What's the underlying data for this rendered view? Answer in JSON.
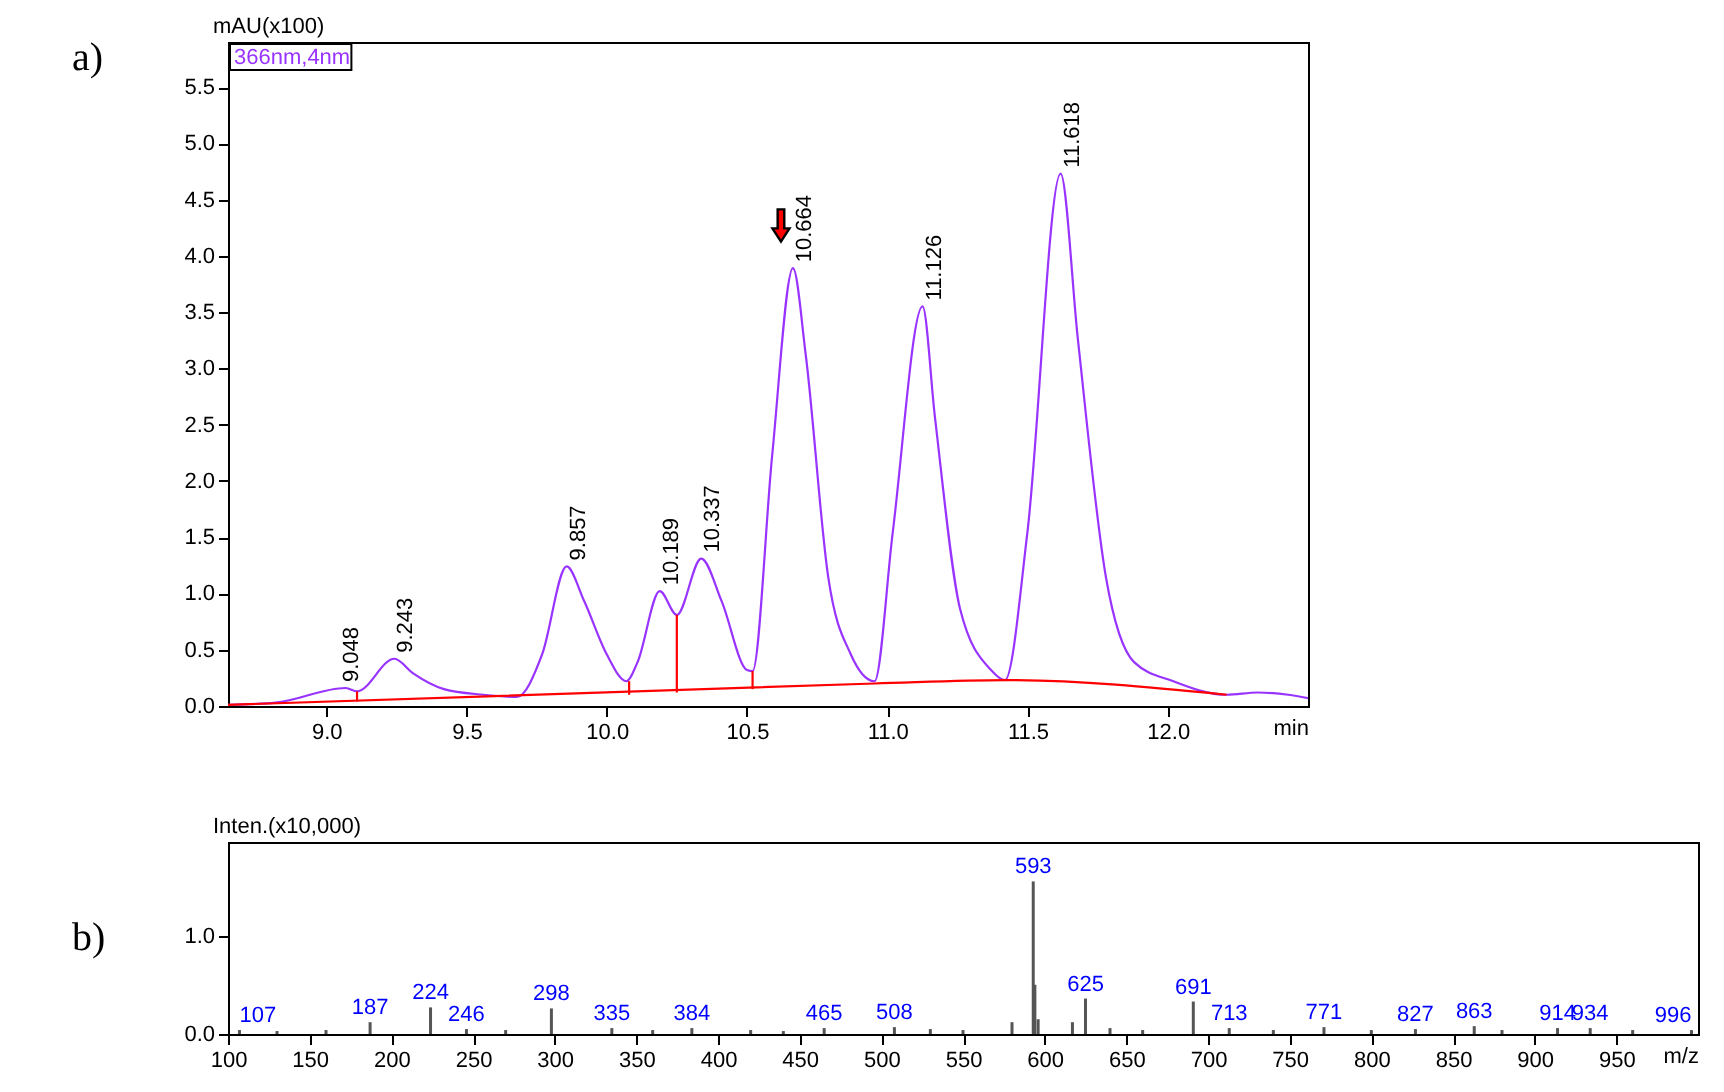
{
  "chart_data": [
    {
      "type": "line",
      "xlabel": "min",
      "ylabel": "mAU(x100)",
      "xlim": [
        8.65,
        12.5
      ],
      "ylim": [
        0,
        5.9
      ],
      "xticks": [
        {
          "value": 9,
          "label": "9.0"
        },
        9.5,
        {
          "value": 10,
          "label": "10.0"
        },
        10.5,
        {
          "value": 11,
          "label": "11.0"
        },
        11.5,
        {
          "value": 12,
          "label": "12.0"
        }
      ],
      "yticks": [
        {
          "value": 0,
          "label": "0.0"
        },
        0.5,
        {
          "value": 1,
          "label": "1.0"
        },
        1.5,
        {
          "value": 2,
          "label": "2.0"
        },
        2.5,
        {
          "value": 3,
          "label": "3.0"
        },
        3.5,
        {
          "value": 4,
          "label": "4.0"
        },
        4.5,
        {
          "value": 5,
          "label": "5.0"
        },
        5.5
      ],
      "series": [
        {
          "color": "#9933ff",
          "x": [
            8.65,
            8.82,
            9.07,
            9.11,
            9.243,
            9.31,
            9.42,
            9.56,
            9.68,
            9.77,
            9.857,
            9.92,
            10.0,
            10.07,
            10.11,
            10.189,
            10.25,
            10.337,
            10.41,
            10.5,
            10.52,
            10.59,
            10.664,
            10.71,
            10.79,
            10.87,
            10.955,
            11.02,
            11.126,
            11.17,
            11.26,
            11.37,
            11.42,
            11.5,
            11.618,
            11.68,
            11.78,
            11.88,
            12.02,
            12.21,
            12.32,
            12.43,
            12.5
          ],
          "values": [
            0.01,
            0.03,
            0.16,
            0.13,
            0.42,
            0.29,
            0.15,
            0.1,
            0.08,
            0.46,
            1.24,
            0.93,
            0.46,
            0.22,
            0.39,
            1.02,
            0.81,
            1.31,
            0.93,
            0.32,
            0.31,
            2.23,
            3.89,
            3.11,
            1.14,
            0.46,
            0.22,
            1.55,
            3.55,
            2.57,
            0.86,
            0.32,
            0.23,
            1.55,
            4.73,
            3.25,
            1.14,
            0.39,
            0.22,
            0.1,
            0.12,
            0.1,
            0.07
          ]
        },
        {
          "color": "#ff0000",
          "x": [
            8.65,
            10.955,
            11.42,
            12.21
          ],
          "values": [
            0.01,
            0.2,
            0.23,
            0.1
          ]
        },
        {
          "color": "#ff0000",
          "x": [
            9.11,
            9.11
          ],
          "values": [
            0.04,
            0.13
          ]
        },
        {
          "color": "#ff0000",
          "x": [
            10.08,
            10.08
          ],
          "values": [
            0.1,
            0.22
          ]
        },
        {
          "color": "#ff0000",
          "x": [
            10.25,
            10.25
          ],
          "values": [
            0.12,
            0.81
          ]
        },
        {
          "color": "#ff0000",
          "x": [
            10.52,
            10.52
          ],
          "values": [
            0.15,
            0.31
          ]
        }
      ],
      "annotations": [
        "a)",
        "366nm,4nm",
        {
          "text": "9.048",
          "x": 9.048,
          "y": 0.16
        },
        {
          "text": "9.243",
          "x": 9.243,
          "y": 0.42
        },
        {
          "text": "9.857",
          "x": 9.857,
          "y": 1.24
        },
        {
          "text": "10.189",
          "x": 10.189,
          "y": 1.02
        },
        {
          "text": "10.337",
          "x": 10.337,
          "y": 1.31
        },
        {
          "text": "10.664",
          "x": 10.664,
          "y": 3.89
        },
        {
          "text": "11.126",
          "x": 11.126,
          "y": 3.55
        },
        {
          "text": "11.618",
          "x": 11.618,
          "y": 4.73
        }
      ]
    },
    {
      "type": "bar",
      "xlabel": "m/z",
      "ylabel": "Inten.(x10,000)",
      "xlim": [
        100,
        1000
      ],
      "ylim": [
        0,
        1.95
      ],
      "xticks": [
        100,
        150,
        200,
        250,
        300,
        350,
        400,
        450,
        500,
        550,
        600,
        650,
        700,
        750,
        800,
        850,
        900,
        950
      ],
      "yticks": [
        {
          "value": 0,
          "label": "0.0"
        },
        {
          "value": 1,
          "label": "1.0"
        }
      ],
      "x": [
        107,
        130,
        160,
        187,
        224,
        246,
        270,
        298,
        335,
        360,
        384,
        420,
        440,
        465,
        508,
        530,
        550,
        580,
        593,
        594,
        596,
        617,
        625,
        640,
        660,
        691,
        713,
        740,
        771,
        800,
        827,
        863,
        880,
        914,
        934,
        960,
        996
      ],
      "values": [
        0.04,
        0.03,
        0.04,
        0.12,
        0.27,
        0.05,
        0.04,
        0.26,
        0.06,
        0.04,
        0.06,
        0.04,
        0.03,
        0.06,
        0.07,
        0.05,
        0.04,
        0.12,
        1.55,
        0.5,
        0.15,
        0.12,
        0.36,
        0.06,
        0.04,
        0.33,
        0.06,
        0.04,
        0.07,
        0.04,
        0.05,
        0.08,
        0.04,
        0.06,
        0.06,
        0.04,
        0.04
      ],
      "color": "#555555",
      "annotations": [
        "b)",
        {
          "text": "107",
          "x": 107,
          "y": 0.04
        },
        {
          "text": "187",
          "x": 187,
          "y": 0.12
        },
        {
          "text": "224",
          "x": 224,
          "y": 0.27
        },
        {
          "text": "246",
          "x": 246,
          "y": 0.05
        },
        {
          "text": "298",
          "x": 298,
          "y": 0.26
        },
        {
          "text": "335",
          "x": 335,
          "y": 0.06
        },
        {
          "text": "384",
          "x": 384,
          "y": 0.06
        },
        {
          "text": "465",
          "x": 465,
          "y": 0.06
        },
        {
          "text": "508",
          "x": 508,
          "y": 0.07
        },
        {
          "text": "593",
          "x": 593,
          "y": 1.55
        },
        {
          "text": "625",
          "x": 625,
          "y": 0.36
        },
        {
          "text": "691",
          "x": 691,
          "y": 0.33
        },
        {
          "text": "713",
          "x": 713,
          "y": 0.06
        },
        {
          "text": "771",
          "x": 771,
          "y": 0.07
        },
        {
          "text": "827",
          "x": 827,
          "y": 0.05
        },
        {
          "text": "863",
          "x": 863,
          "y": 0.08
        },
        {
          "text": "914",
          "x": 914,
          "y": 0.06
        },
        {
          "text": "934",
          "x": 934,
          "y": 0.06
        },
        {
          "text": "996",
          "x": 996,
          "y": 0.04
        }
      ]
    }
  ]
}
